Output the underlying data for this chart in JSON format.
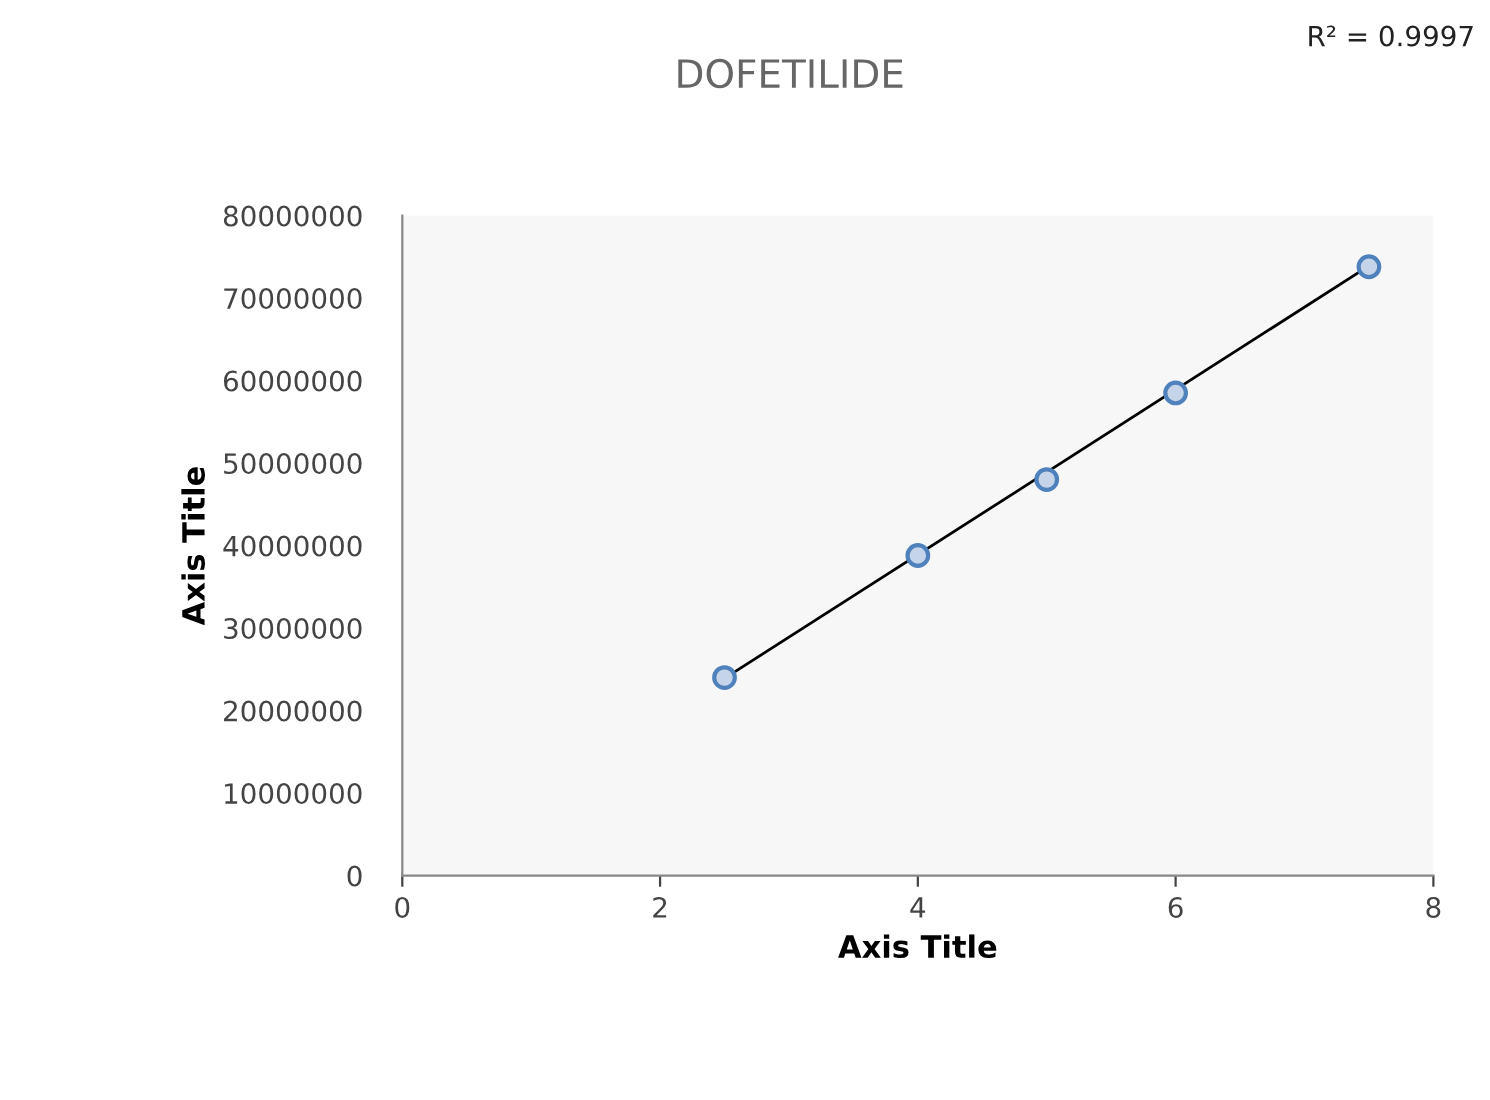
{
  "chart_data": {
    "type": "scatter",
    "title": "DOFETILIDE",
    "xlabel": "Axis Title",
    "ylabel": "Axis Title",
    "annotations": [
      "R² = 0.9997"
    ],
    "series": [
      {
        "marker": "circle",
        "color": "#4f81bd",
        "x": [
          2.5,
          4,
          5,
          6,
          7.5
        ],
        "values": [
          24000000,
          38800000,
          48000000,
          58500000,
          73800000
        ]
      },
      {
        "type": "line",
        "marker": "none",
        "color": "#000000",
        "x": [
          2.5,
          7.5
        ],
        "values": [
          23900000,
          73900000
        ]
      }
    ],
    "xlim": [
      0,
      8
    ],
    "xticks": [
      0,
      2,
      4,
      6,
      8
    ],
    "ylim": [
      0,
      80000000
    ],
    "yticks": [
      0,
      10000000,
      20000000,
      30000000,
      40000000,
      50000000,
      60000000,
      70000000,
      80000000
    ],
    "grid": false,
    "legend": false
  }
}
